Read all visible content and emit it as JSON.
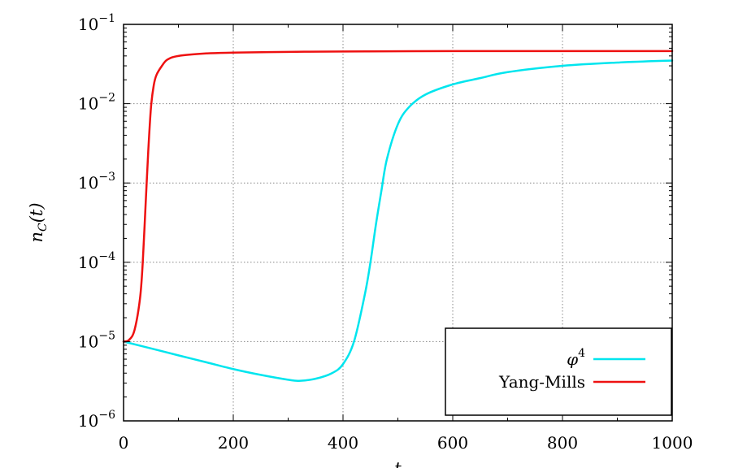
{
  "chart_data": {
    "type": "line",
    "title": "",
    "xlabel": "t",
    "ylabel": "n_C(t)",
    "xlim": [
      0,
      1000
    ],
    "ylim": [
      1e-06,
      0.1
    ],
    "yscale": "log",
    "grid": true,
    "legend_position": "bottom-right",
    "xticks": [
      0,
      200,
      400,
      600,
      800,
      1000
    ],
    "xtick_labels": [
      "0",
      "200",
      "400",
      "600",
      "800",
      "1000"
    ],
    "yticks": [
      1e-06,
      1e-05,
      0.0001,
      0.001,
      0.01,
      0.1
    ],
    "ytick_labels": [
      {
        "base": "10",
        "exp": "−6"
      },
      {
        "base": "10",
        "exp": "−5"
      },
      {
        "base": "10",
        "exp": "−4"
      },
      {
        "base": "10",
        "exp": "−3"
      },
      {
        "base": "10",
        "exp": "−2"
      },
      {
        "base": "10",
        "exp": "−1"
      }
    ],
    "series": [
      {
        "name": "φ⁴",
        "label_base": "φ",
        "label_exp": "4",
        "color": "#00e5ee",
        "x": [
          0,
          50,
          100,
          150,
          200,
          250,
          300,
          320,
          350,
          380,
          400,
          420,
          440,
          450,
          460,
          470,
          480,
          500,
          520,
          550,
          600,
          650,
          700,
          800,
          900,
          1000
        ],
        "y": [
          1e-05,
          8.2e-06,
          6.7e-06,
          5.5e-06,
          4.5e-06,
          3.8e-06,
          3.3e-06,
          3.2e-06,
          3.4e-06,
          4e-06,
          5.2e-06,
          1e-05,
          4e-05,
          0.0001,
          0.0003,
          0.0008,
          0.002,
          0.0055,
          0.009,
          0.013,
          0.0175,
          0.021,
          0.025,
          0.03,
          0.033,
          0.035
        ]
      },
      {
        "name": "Yang-Mills",
        "label_base": "Yang-Mills",
        "label_exp": "",
        "color": "#ee1111",
        "x": [
          0,
          10,
          20,
          30,
          35,
          40,
          45,
          50,
          55,
          60,
          70,
          80,
          100,
          150,
          200,
          300,
          400,
          600,
          800,
          1000
        ],
        "y": [
          1e-05,
          1.05e-05,
          1.4e-05,
          3.5e-05,
          0.0001,
          0.0005,
          0.0025,
          0.009,
          0.017,
          0.023,
          0.03,
          0.036,
          0.04,
          0.043,
          0.044,
          0.045,
          0.0455,
          0.046,
          0.046,
          0.046
        ]
      }
    ]
  }
}
